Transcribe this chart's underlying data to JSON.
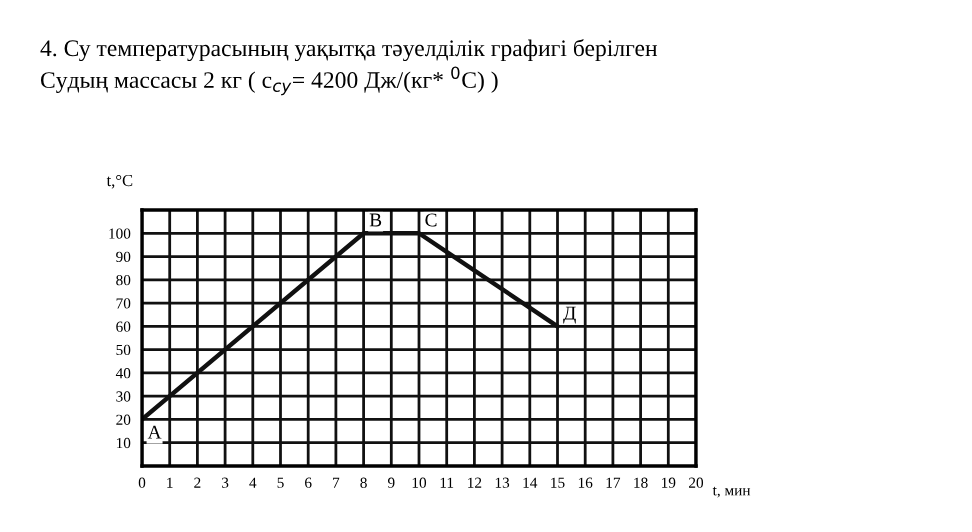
{
  "chart_data": {
    "type": "line",
    "title": "4. Су температурасының уақытқа тәуелділік графигі берілген",
    "subtitle": "Судың массасы 2 кг ( c$_{су}$= 4200 Дж/(кг* $^{0}$С) )",
    "xlabel": "t, мин",
    "ylabel": "t,°C",
    "x": [
      0,
      8,
      10,
      15
    ],
    "series": [
      {
        "color": "#111111",
        "values": [
          20,
          100,
          100,
          60
        ]
      }
    ],
    "annotations": [
      {
        "text": "A",
        "x": 0,
        "y": 20
      },
      {
        "text": "B",
        "x": 8,
        "y": 100
      },
      {
        "text": "C",
        "x": 10,
        "y": 100
      },
      {
        "text": "Д",
        "x": 15,
        "y": 60
      }
    ],
    "xlim": [
      0,
      20
    ],
    "xticks": [
      0,
      1,
      2,
      3,
      4,
      5,
      6,
      7,
      8,
      9,
      10,
      11,
      12,
      13,
      14,
      15,
      16,
      17,
      18,
      19,
      20
    ],
    "ylim": [
      0,
      110
    ],
    "yticks": [
      10,
      20,
      30,
      40,
      50,
      60,
      70,
      80,
      90,
      100
    ],
    "grid": true,
    "marker": "none",
    "line_style": "solid",
    "legend": false
  }
}
